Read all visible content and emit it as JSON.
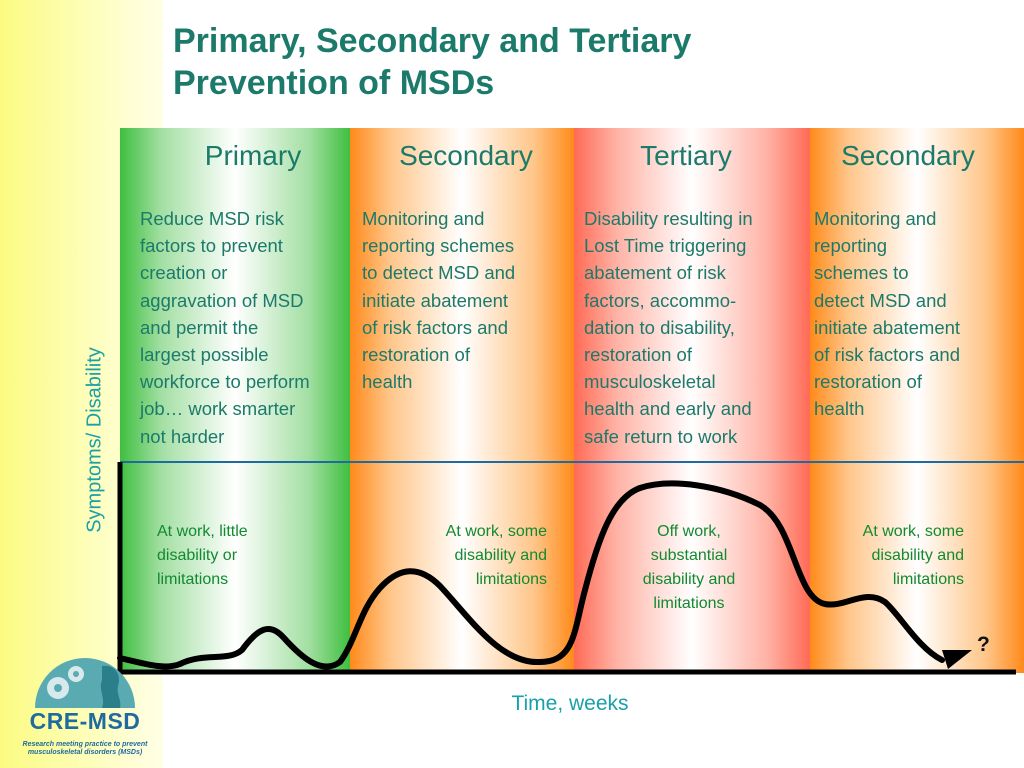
{
  "title": {
    "line1": "Primary, Secondary and Tertiary",
    "line2": "Prevention of MSDs"
  },
  "colors": {
    "title": "#1c7a6b",
    "primary_band": "#3fbf3f",
    "secondary_band": "#ff8a1a",
    "tertiary_band": "#ff6a55",
    "curve": "#000000",
    "axis_label": "#1aa0a8",
    "curve_label": "#118a30",
    "logo": "#1f6a9e"
  },
  "stages": [
    {
      "heading": "Primary",
      "description": "Reduce MSD risk\nfactors to prevent\ncreation or\naggravation of MSD\nand permit the\nlargest possible\nworkforce to perform\njob… work smarter\nnot harder",
      "curve_label": "At work, little\ndisability or\nlimitations"
    },
    {
      "heading": "Secondary",
      "description": "Monitoring and\nreporting schemes\nto detect MSD and\ninitiate abatement\nof risk factors and\nrestoration of\nhealth",
      "curve_label": "At work, some\ndisability and\nlimitations"
    },
    {
      "heading": "Tertiary",
      "description": "Disability resulting in\nLost Time triggering\nabatement of risk\nfactors, accommo-\ndation to disability,\nrestoration of\nmusculoskeletal\nhealth and early and\nsafe return to work",
      "curve_label": "Off work,\nsubstantial\ndisability and\nlimitations"
    },
    {
      "heading": "Secondary",
      "description": "Monitoring and\nreporting\nschemes to\ndetect MSD and\ninitiate abatement\nof risk factors and\nrestoration of\nhealth",
      "curve_label": "At work, some\ndisability and\nlimitations"
    }
  ],
  "axes": {
    "y_label": "Symptoms/ Disability",
    "x_label": "Time, weeks"
  },
  "end_marker": "?",
  "logo": {
    "name": "CRE-MSD",
    "tagline": "Research meeting practice to prevent\nmusculoskeletal disorders (MSDs)"
  }
}
